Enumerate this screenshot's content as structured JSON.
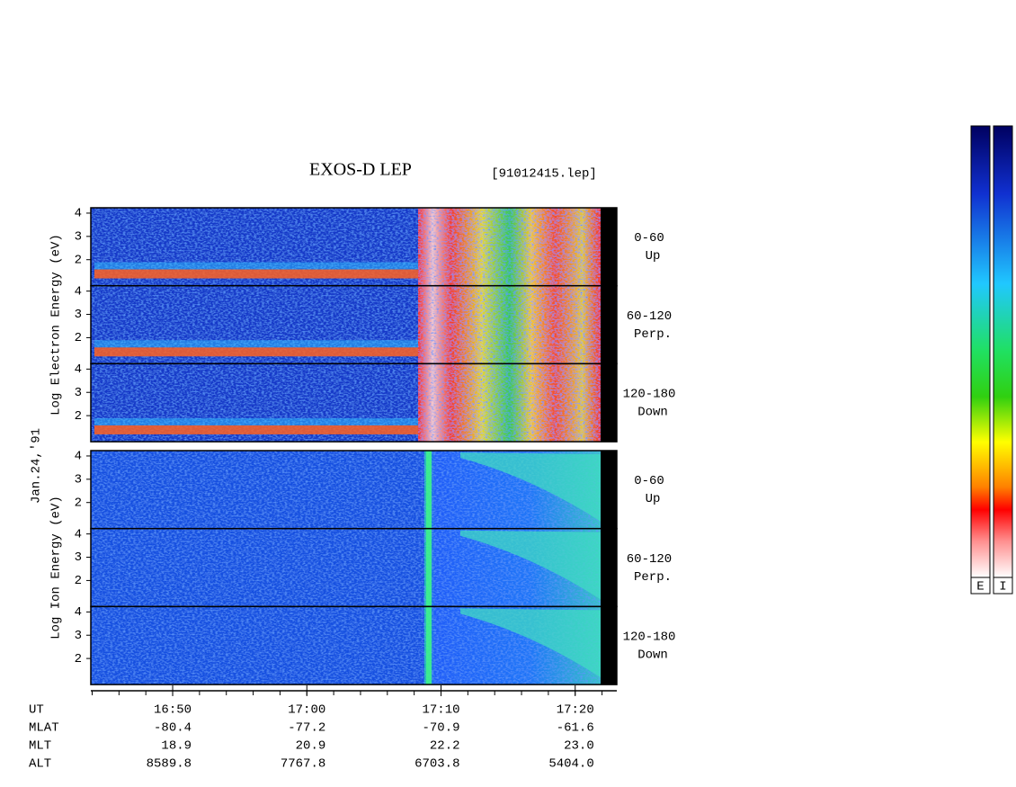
{
  "chart_data": {
    "type": "spectrogram",
    "title": "EXOS-D LEP",
    "file_label": "[91012415.lep]",
    "date_label": "Jan.24,'91",
    "xlim": [
      1003.9,
      1043.1
    ],
    "xticks": [
      {
        "value": 1010,
        "label": "16:50"
      },
      {
        "value": 1020,
        "label": "17:00"
      },
      {
        "value": 1030,
        "label": "17:10"
      },
      {
        "value": 1040,
        "label": "17:20"
      }
    ],
    "minor_xticks": [
      1004,
      1006,
      1008,
      1010,
      1012,
      1014,
      1016,
      1018,
      1020,
      1022,
      1024,
      1026,
      1028,
      1030,
      1032,
      1034,
      1036,
      1038,
      1040,
      1042
    ],
    "x_label": "UT",
    "groups": [
      {
        "ylabel": "Log Electron Energy (eV)",
        "ylim": [
          0.88,
          4.23
        ],
        "yticks": [
          2,
          3,
          4
        ],
        "panels": [
          {
            "range": "0-60",
            "direction": "Up"
          },
          {
            "range": "60-120",
            "direction": "Perp."
          },
          {
            "range": "120-180",
            "direction": "Down"
          }
        ]
      },
      {
        "ylabel": "Log Ion Energy (eV)",
        "ylim": [
          0.88,
          4.23
        ],
        "yticks": [
          2,
          3,
          4
        ],
        "panels": [
          {
            "range": "0-60",
            "direction": "Up"
          },
          {
            "range": "60-120",
            "direction": "Perp."
          },
          {
            "range": "120-180",
            "direction": "Down"
          }
        ]
      }
    ],
    "ephemeris": [
      {
        "label": "MLAT",
        "values": [
          "-80.4",
          "-77.2",
          "-70.9",
          "-61.6"
        ]
      },
      {
        "label": "MLT",
        "values": [
          "18.9",
          "20.9",
          "22.2",
          "23.0"
        ]
      },
      {
        "label": "ALT",
        "values": [
          "8589.8",
          "7767.8",
          "6703.8",
          "5404.0"
        ]
      }
    ],
    "colorbars": [
      "E",
      "I"
    ]
  }
}
